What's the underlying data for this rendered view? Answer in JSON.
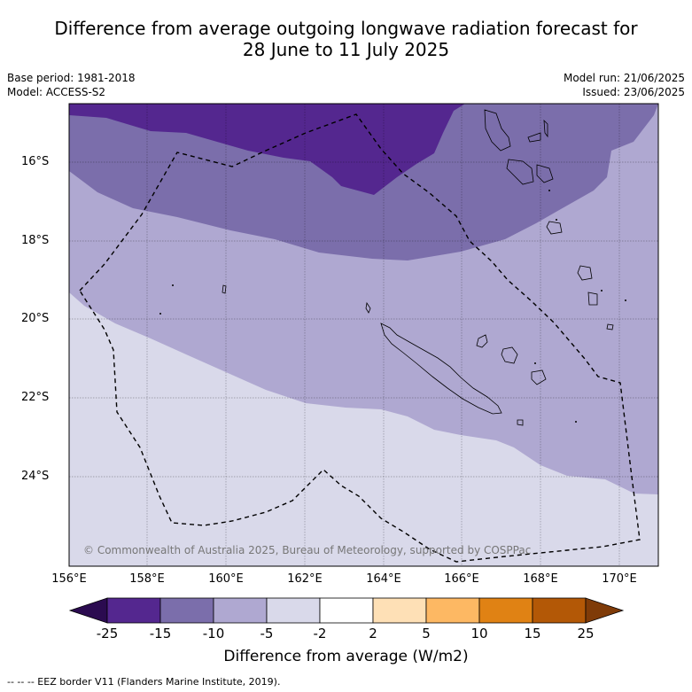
{
  "title_line1": "Difference from average outgoing longwave radiation forecast for",
  "title_line2": "28 June to 11 July 2025",
  "meta_left": [
    "Base period: 1981-2018",
    "Model: ACCESS-S2"
  ],
  "meta_right": [
    "Model run: 21/06/2025",
    "Issued: 23/06/2025"
  ],
  "map": {
    "lon_range": [
      156,
      171
    ],
    "lat_range": [
      -26.0,
      -14.6
    ],
    "x_ticks": [
      "156°E",
      "158°E",
      "160°E",
      "162°E",
      "164°E",
      "166°E",
      "168°E",
      "170°E"
    ],
    "y_ticks": [
      "16°S",
      "18°S",
      "20°S",
      "22°S",
      "24°S"
    ],
    "copyright": "© Commonwealth of Australia 2025, Bureau of Meteorology, supported by COSPPac",
    "grid": true
  },
  "colorbar": {
    "labels": [
      "-25",
      "-15",
      "-10",
      "-5",
      "-2",
      "2",
      "5",
      "10",
      "15",
      "25"
    ],
    "colors": [
      "#2b0b50",
      "#54278f",
      "#7b6eab",
      "#afa8d1",
      "#d9d9ea",
      "#ffffff",
      "#fee0b6",
      "#fdb863",
      "#e08214",
      "#b35806",
      "#7f3b08"
    ],
    "title": "Difference from average (W/m2)"
  },
  "footer": "--  --  -- EEZ border V11 (Flanders Marine Institute, 2019)."
}
